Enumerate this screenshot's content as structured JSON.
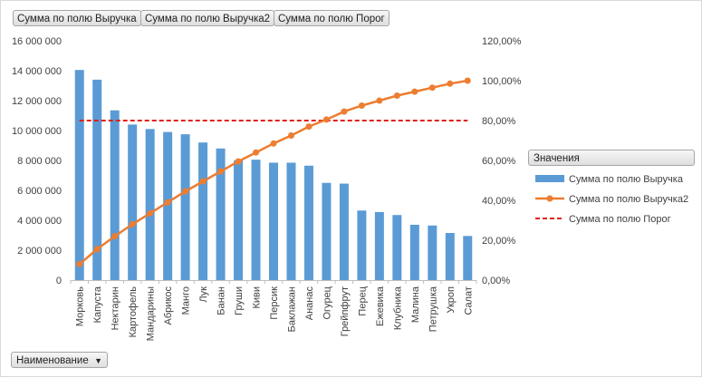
{
  "field_buttons": [
    "Сумма по полю Выручка",
    "Сумма по полю Выручка2",
    "Сумма по полю Порог"
  ],
  "legend": {
    "title": "Значения",
    "items": [
      {
        "label": "Сумма по полю Выручка",
        "kind": "bar",
        "color": "#5b9bd5"
      },
      {
        "label": "Сумма по полю Выручка2",
        "kind": "line-marker",
        "color": "#ed7d31"
      },
      {
        "label": "Сумма по полю Порог",
        "kind": "dashed",
        "color": "#e0201b"
      }
    ]
  },
  "axis_field_button": {
    "label": "Наименование",
    "arrow": "▼"
  },
  "chart_data": {
    "type": "bar",
    "categories": [
      "Морковь",
      "Капуста",
      "Нектарин",
      "Картофель",
      "Мандарины",
      "Абрикос",
      "Манго",
      "Лук",
      "Банан",
      "Груши",
      "Киви",
      "Персик",
      "Баклажан",
      "Ананас",
      "Огурец",
      "Грейпфрут",
      "Перец",
      "Ежевика",
      "Клубника",
      "Малина",
      "Петрушка",
      "Укроп",
      "Салат"
    ],
    "series": [
      {
        "name": "Сумма по полю Выручка",
        "type": "bar",
        "axis": "left",
        "color": "#5b9bd5",
        "values": [
          14050000,
          13400000,
          11350000,
          10400000,
          10100000,
          9900000,
          9750000,
          9200000,
          8800000,
          8000000,
          8050000,
          7850000,
          7850000,
          7650000,
          6500000,
          6450000,
          4650000,
          4550000,
          4350000,
          3700000,
          3650000,
          3150000,
          2950000
        ]
      },
      {
        "name": "Сумма по полю Выручка2",
        "type": "line",
        "axis": "right",
        "color": "#ed7d31",
        "values": [
          8.0,
          15.5,
          22.0,
          28.0,
          33.5,
          39.0,
          44.5,
          49.5,
          54.5,
          59.5,
          64.0,
          68.5,
          72.5,
          77.0,
          80.5,
          84.5,
          87.5,
          90.0,
          92.5,
          94.5,
          96.5,
          98.5,
          100.0
        ]
      },
      {
        "name": "Сумма по полю Порог",
        "type": "line",
        "axis": "right",
        "color": "#e0201b",
        "dashed": true,
        "values": [
          80,
          80,
          80,
          80,
          80,
          80,
          80,
          80,
          80,
          80,
          80,
          80,
          80,
          80,
          80,
          80,
          80,
          80,
          80,
          80,
          80,
          80,
          80
        ]
      }
    ],
    "y_left": {
      "min": 0,
      "max": 16000000,
      "step": 2000000,
      "tick_labels": [
        "0",
        "2 000 000",
        "4 000 000",
        "6 000 000",
        "8 000 000",
        "10 000 000",
        "12 000 000",
        "14 000 000",
        "16 000 000"
      ]
    },
    "y_right": {
      "min": 0,
      "max": 120,
      "step": 20,
      "tick_labels": [
        "0,00%",
        "20,00%",
        "40,00%",
        "60,00%",
        "80,00%",
        "100,00%",
        "120,00%"
      ]
    },
    "grid": false,
    "legend_position": "right"
  }
}
